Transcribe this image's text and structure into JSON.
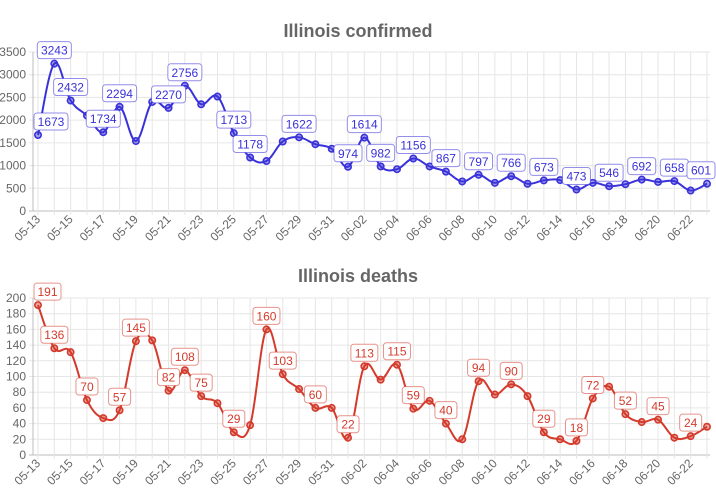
{
  "chart_data": [
    {
      "type": "line",
      "title": "Illinois confirmed",
      "color": "#3a32d9",
      "ylim": [
        0,
        3500
      ],
      "yticks": [
        0,
        500,
        1000,
        1500,
        2000,
        2500,
        3000,
        3500
      ],
      "grid": true,
      "categories": [
        "05-13",
        "05-14",
        "05-15",
        "05-16",
        "05-17",
        "05-18",
        "05-19",
        "05-20",
        "05-21",
        "05-22",
        "05-23",
        "05-24",
        "05-25",
        "05-26",
        "05-27",
        "05-28",
        "05-29",
        "05-30",
        "05-31",
        "06-01",
        "06-02",
        "06-03",
        "06-04",
        "06-05",
        "06-06",
        "06-07",
        "06-08",
        "06-09",
        "06-10",
        "06-11",
        "06-12",
        "06-13",
        "06-14",
        "06-15",
        "06-16",
        "06-17",
        "06-18",
        "06-19",
        "06-20",
        "06-21",
        "06-22",
        "06-23"
      ],
      "tick_labels": [
        "05-13",
        "05-15",
        "05-17",
        "05-19",
        "05-21",
        "05-23",
        "05-25",
        "05-27",
        "05-29",
        "05-31",
        "06-02",
        "06-04",
        "06-06",
        "06-08",
        "06-10",
        "06-12",
        "06-14",
        "06-16",
        "06-18",
        "06-20",
        "06-22"
      ],
      "values": [
        1673,
        3243,
        2432,
        2100,
        1734,
        2294,
        1540,
        2400,
        2270,
        2756,
        2350,
        2520,
        1713,
        1178,
        1100,
        1530,
        1622,
        1470,
        1370,
        974,
        1614,
        982,
        920,
        1156,
        980,
        867,
        650,
        797,
        620,
        766,
        600,
        673,
        680,
        473,
        620,
        546,
        590,
        692,
        640,
        658,
        450,
        601
      ],
      "data_labels": [
        {
          "i": 0,
          "text": "1673"
        },
        {
          "i": 1,
          "text": "3243"
        },
        {
          "i": 2,
          "text": "2432"
        },
        {
          "i": 4,
          "text": "1734"
        },
        {
          "i": 5,
          "text": "2294"
        },
        {
          "i": 8,
          "text": "2270"
        },
        {
          "i": 9,
          "text": "2756"
        },
        {
          "i": 12,
          "text": "1713"
        },
        {
          "i": 13,
          "text": "1178"
        },
        {
          "i": 16,
          "text": "1622"
        },
        {
          "i": 19,
          "text": "974"
        },
        {
          "i": 20,
          "text": "1614"
        },
        {
          "i": 21,
          "text": "982"
        },
        {
          "i": 23,
          "text": "1156"
        },
        {
          "i": 25,
          "text": "867"
        },
        {
          "i": 27,
          "text": "797"
        },
        {
          "i": 29,
          "text": "766"
        },
        {
          "i": 31,
          "text": "673"
        },
        {
          "i": 33,
          "text": "473"
        },
        {
          "i": 35,
          "text": "546"
        },
        {
          "i": 37,
          "text": "692"
        },
        {
          "i": 39,
          "text": "658"
        },
        {
          "i": 41,
          "text": "601"
        }
      ]
    },
    {
      "type": "line",
      "title": "Illinois deaths",
      "color": "#d43b2c",
      "ylim": [
        0,
        200
      ],
      "yticks": [
        0,
        20,
        40,
        60,
        80,
        100,
        120,
        140,
        160,
        180,
        200
      ],
      "grid": true,
      "categories": [
        "05-13",
        "05-14",
        "05-15",
        "05-16",
        "05-17",
        "05-18",
        "05-19",
        "05-20",
        "05-21",
        "05-22",
        "05-23",
        "05-24",
        "05-25",
        "05-26",
        "05-27",
        "05-28",
        "05-29",
        "05-30",
        "05-31",
        "06-01",
        "06-02",
        "06-03",
        "06-04",
        "06-05",
        "06-06",
        "06-07",
        "06-08",
        "06-09",
        "06-10",
        "06-11",
        "06-12",
        "06-13",
        "06-14",
        "06-15",
        "06-16",
        "06-17",
        "06-18",
        "06-19",
        "06-20",
        "06-21",
        "06-22",
        "06-23"
      ],
      "tick_labels": [
        "05-13",
        "05-15",
        "05-17",
        "05-19",
        "05-21",
        "05-23",
        "05-25",
        "05-27",
        "05-29",
        "05-31",
        "06-02",
        "06-04",
        "06-06",
        "06-08",
        "06-10",
        "06-12",
        "06-14",
        "06-16",
        "06-18",
        "06-20",
        "06-22"
      ],
      "values": [
        191,
        136,
        131,
        70,
        47,
        57,
        145,
        146,
        82,
        108,
        75,
        66,
        29,
        38,
        160,
        103,
        84,
        60,
        60,
        22,
        113,
        96,
        115,
        59,
        69,
        40,
        20,
        94,
        77,
        90,
        75,
        29,
        20,
        18,
        72,
        87,
        52,
        42,
        45,
        22,
        24,
        36
      ],
      "data_labels": [
        {
          "i": 0,
          "text": "191"
        },
        {
          "i": 1,
          "text": "136"
        },
        {
          "i": 3,
          "text": "70"
        },
        {
          "i": 5,
          "text": "57"
        },
        {
          "i": 6,
          "text": "145"
        },
        {
          "i": 8,
          "text": "82"
        },
        {
          "i": 9,
          "text": "108"
        },
        {
          "i": 10,
          "text": "75"
        },
        {
          "i": 12,
          "text": "29"
        },
        {
          "i": 14,
          "text": "160"
        },
        {
          "i": 15,
          "text": "103"
        },
        {
          "i": 17,
          "text": "60"
        },
        {
          "i": 19,
          "text": "22"
        },
        {
          "i": 20,
          "text": "113"
        },
        {
          "i": 22,
          "text": "115"
        },
        {
          "i": 23,
          "text": "59"
        },
        {
          "i": 25,
          "text": "40"
        },
        {
          "i": 27,
          "text": "94"
        },
        {
          "i": 29,
          "text": "90"
        },
        {
          "i": 31,
          "text": "29"
        },
        {
          "i": 33,
          "text": "18"
        },
        {
          "i": 34,
          "text": "72"
        },
        {
          "i": 36,
          "text": "52"
        },
        {
          "i": 38,
          "text": "45"
        },
        {
          "i": 40,
          "text": "24"
        }
      ]
    }
  ]
}
